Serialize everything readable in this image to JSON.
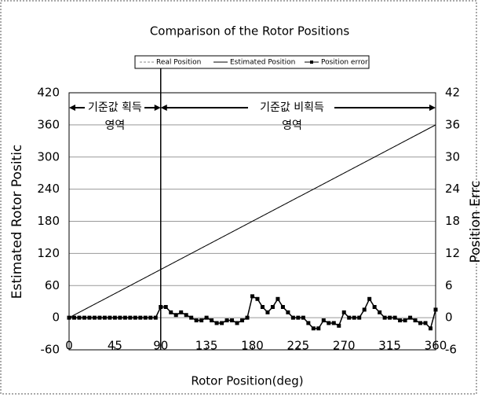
{
  "chart_data": {
    "type": "line",
    "title": "Comparison of the Rotor Positions",
    "xlabel": "Rotor Position(deg)",
    "ylabel": "Estimated Rotor Positic",
    "y2label": "Position Errc",
    "annotations": [
      "기준값 획득",
      "영역",
      "기준값 비획득",
      "영역"
    ],
    "xlim": [
      0,
      360
    ],
    "xticks": [
      0,
      45,
      90,
      135,
      180,
      225,
      270,
      315,
      360
    ],
    "ylim": [
      -60,
      420
    ],
    "yticks": [
      -60,
      0,
      60,
      120,
      180,
      240,
      300,
      360,
      420
    ],
    "y2lim": [
      -6,
      42
    ],
    "y2ticks": [
      -6,
      0,
      6,
      12,
      18,
      24,
      30,
      36,
      42
    ],
    "grid": true,
    "series": [
      {
        "name": "Real Position",
        "color": "#888888",
        "x": [
          0,
          360
        ],
        "values": [
          0,
          360
        ]
      },
      {
        "name": "Estimated Position",
        "color": "#000000",
        "x": [
          0,
          360
        ],
        "values": [
          0,
          360
        ]
      },
      {
        "name": "Position error",
        "color": "#000000",
        "axis": "y2",
        "x": [
          0,
          5,
          10,
          15,
          20,
          25,
          30,
          35,
          40,
          45,
          50,
          55,
          60,
          65,
          70,
          75,
          80,
          85,
          90,
          95,
          100,
          105,
          110,
          115,
          120,
          125,
          130,
          135,
          140,
          145,
          150,
          155,
          160,
          165,
          170,
          175,
          180,
          185,
          190,
          195,
          200,
          205,
          210,
          215,
          220,
          225,
          230,
          235,
          240,
          245,
          250,
          255,
          260,
          265,
          270,
          275,
          280,
          285,
          290,
          295,
          300,
          305,
          310,
          315,
          320,
          325,
          330,
          335,
          340,
          345,
          350,
          355,
          360
        ],
        "values": [
          0,
          0,
          0,
          0,
          0,
          0,
          0,
          0,
          0,
          0,
          0,
          0,
          0,
          0,
          0,
          0,
          0,
          0,
          2,
          2,
          1,
          0.5,
          1,
          0.5,
          0,
          -0.5,
          -0.5,
          0,
          -0.5,
          -1,
          -1,
          -0.5,
          -0.5,
          -1,
          -0.5,
          0,
          4,
          3.5,
          2,
          1,
          2,
          3.5,
          2,
          1,
          0,
          0,
          0,
          -1,
          -2,
          -2,
          -0.5,
          -1,
          -1,
          -1.5,
          1,
          0,
          0,
          0,
          1.5,
          3.5,
          2,
          1,
          0,
          0,
          0,
          -0.5,
          -0.5,
          0,
          -0.5,
          -1,
          -1,
          -2,
          1.5
        ]
      }
    ]
  }
}
